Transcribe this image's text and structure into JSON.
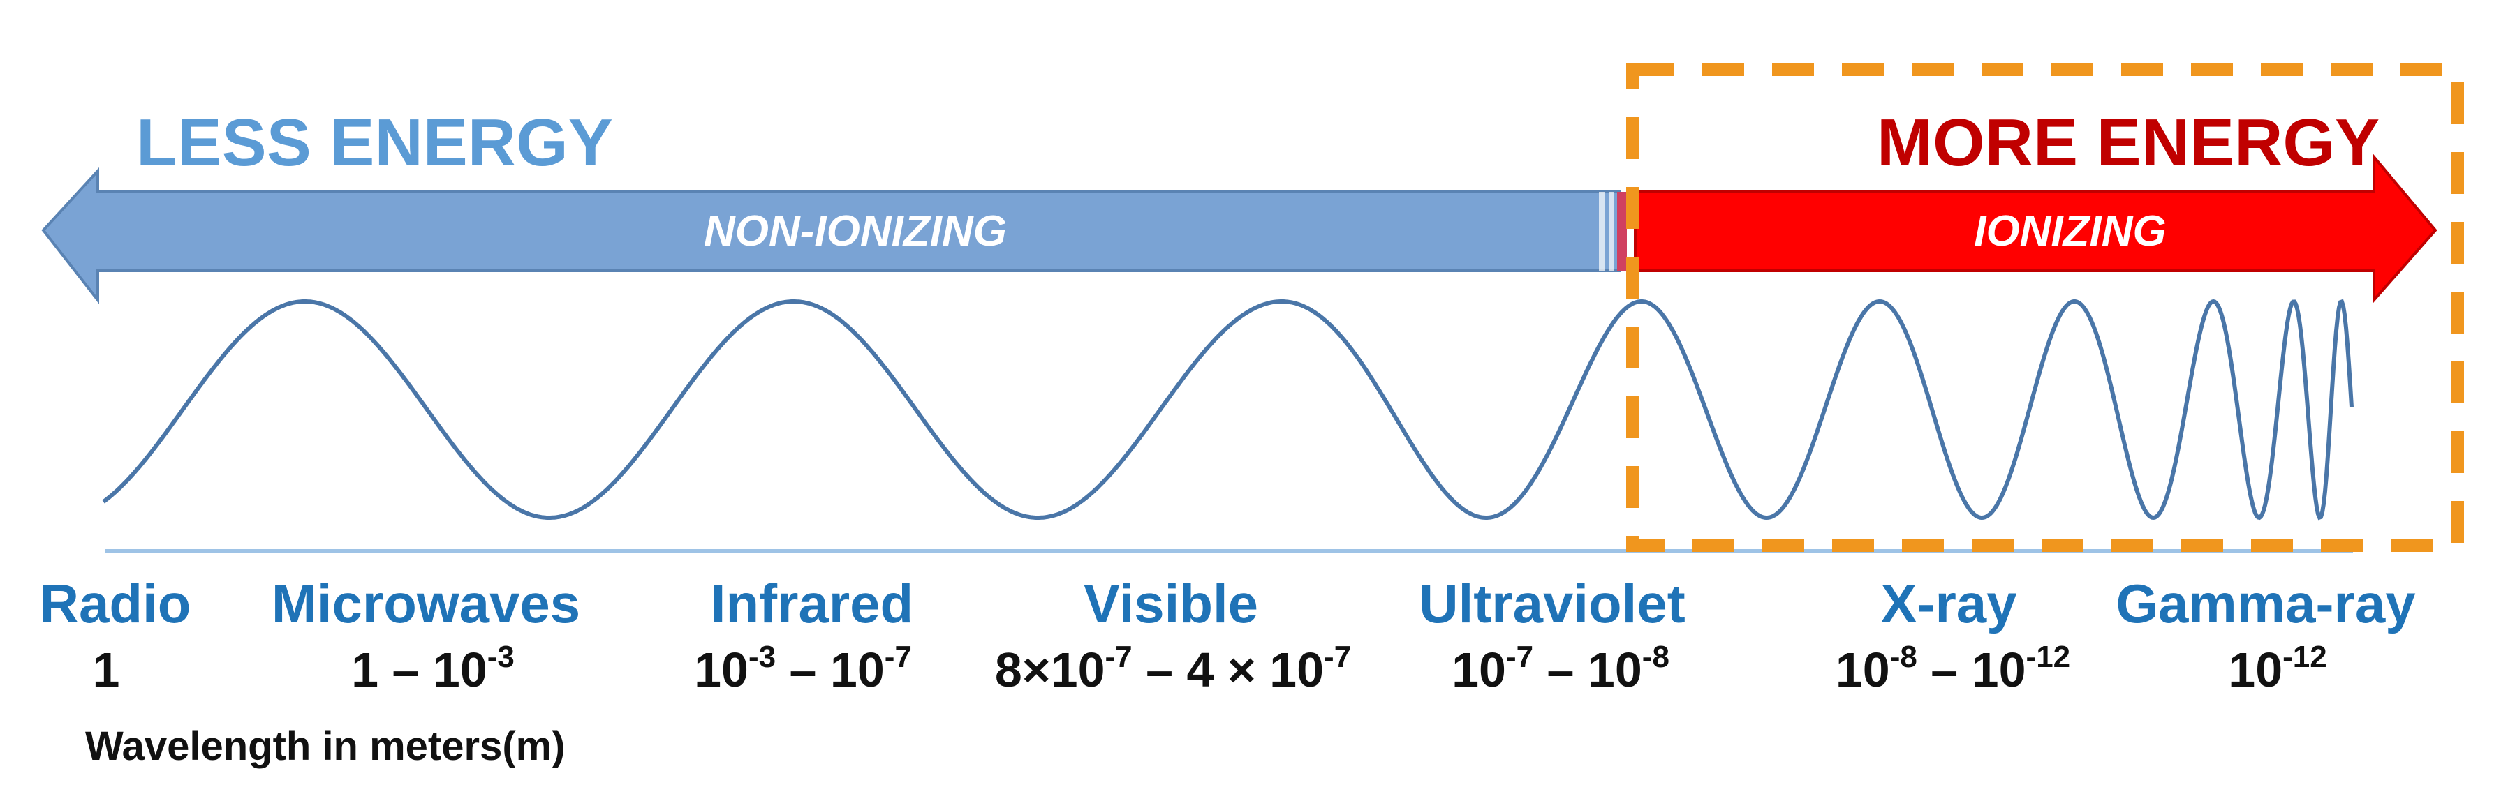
{
  "labels": {
    "less_energy": "LESS ENERGY",
    "more_energy": "MORE ENERGY",
    "non_ionizing": "NON-IONIZING",
    "ionizing": "IONIZING",
    "axis_caption": "Wavelength in meters(m)"
  },
  "bands": [
    {
      "name": "Radio",
      "range": [
        "1"
      ]
    },
    {
      "name": "Microwaves",
      "range": [
        "1 – 10",
        "-3",
        ""
      ]
    },
    {
      "name": "Infrared",
      "range": [
        "10",
        "-3",
        " – 10",
        "-7",
        ""
      ]
    },
    {
      "name": "Visible",
      "range": [
        "8×10",
        "-7",
        " – 4 × 10",
        "-7",
        ""
      ]
    },
    {
      "name": "Ultraviolet",
      "range": [
        "10",
        "-7",
        " – 10",
        "-8",
        ""
      ]
    },
    {
      "name": "X-ray",
      "range": [
        "10",
        "-8",
        " – 10",
        "-12",
        ""
      ]
    },
    {
      "name": "Gamma-ray",
      "range": [
        "10",
        "-12",
        ""
      ]
    }
  ],
  "colors": {
    "non_ionizing_arrow": "#7aa3d4",
    "ionizing_arrow": "#ff0000",
    "less_energy_text": "#5b9bd5",
    "more_energy_text": "#c00000",
    "wave": "#4a76a8",
    "highlight_box": "#f0961e",
    "band_name": "#1f73b7"
  }
}
